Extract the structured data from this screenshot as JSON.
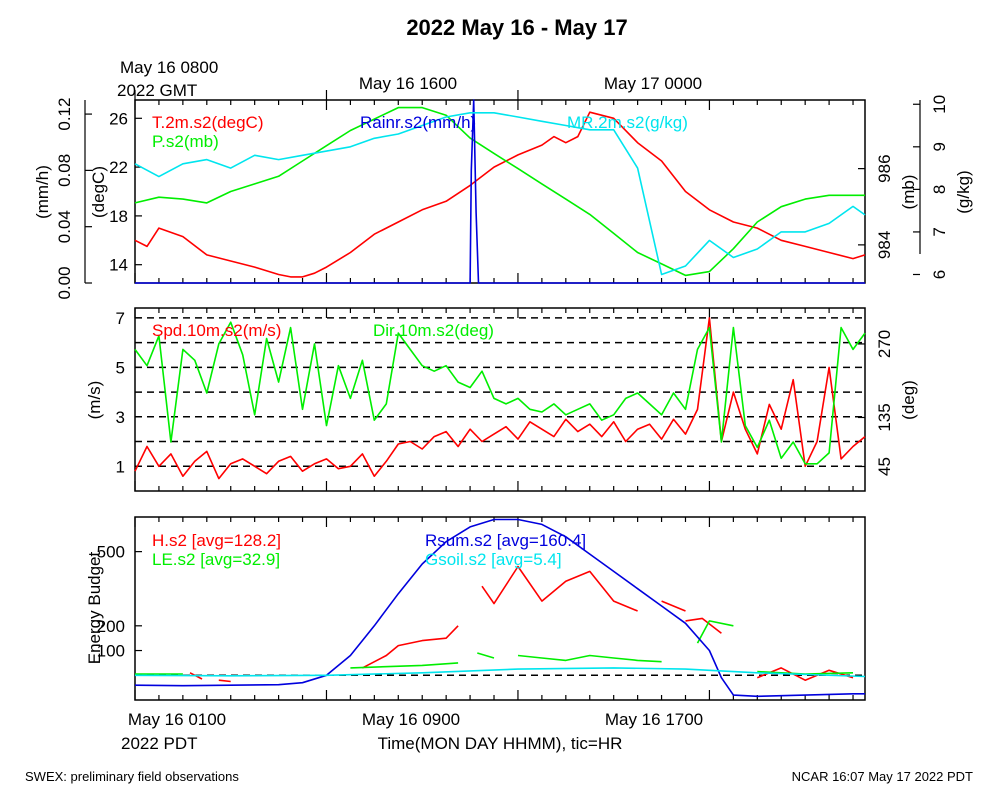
{
  "header": {
    "title": "2022 May 16 - May 17",
    "start_gmt_line1": "May 16 0800",
    "start_gmt_line2": "2022 GMT",
    "gmt_ticks": [
      "May 16 1600",
      "May 17 0000"
    ]
  },
  "footer": {
    "left": "SWEX: preliminary field observations",
    "right": "NCAR 16:07 May 17 2022 PDT",
    "start_pdt_line1": "May 16 0100",
    "start_pdt_line2": "2022 PDT",
    "pdt_ticks": [
      "May 16 0900",
      "May 16 1700"
    ],
    "xlabel": "Time(MON DAY HHMM), tic=HR"
  },
  "colors": {
    "red": "#ff0000",
    "green": "#00ee00",
    "blue": "#0000dd",
    "cyan": "#00e5ee"
  },
  "chart_data": [
    {
      "type": "line",
      "panel": "top",
      "x_range_hours_pdt": [
        0,
        30.5
      ],
      "legend": [
        "T.2m.s2(degC)",
        "P.s2(mb)",
        "Rainr.s2(mm/h)",
        "MR.2m.s2(g/kg)"
      ],
      "axes": {
        "rain": {
          "label": "(mm/h)",
          "ticks": [
            "0.00",
            "0.04",
            "0.08",
            "0.12"
          ],
          "range": [
            0,
            0.13
          ]
        },
        "temp": {
          "label": "(degC)",
          "ticks": [
            "14",
            "18",
            "22",
            "26"
          ],
          "range": [
            12.5,
            27.5
          ]
        },
        "pressure": {
          "label": "(mb)",
          "ticks": [
            "984",
            "986"
          ],
          "range": [
            983.0,
            987.8
          ]
        },
        "mixing_ratio": {
          "label": "(g/kg)",
          "ticks": [
            "6",
            "7",
            "8",
            "9",
            "10"
          ],
          "range": [
            5.8,
            10.1
          ]
        }
      },
      "series": [
        {
          "name": "T.2m.s2(degC)",
          "color": "red",
          "axis": "temp",
          "x": [
            0,
            0.5,
            1,
            2,
            3,
            4,
            5,
            6,
            6.5,
            7,
            7.5,
            8,
            9,
            10,
            11,
            12,
            13,
            14,
            15,
            16,
            17,
            17.5,
            18,
            18.5,
            19,
            20,
            21,
            22,
            23,
            24,
            25,
            26,
            27,
            28,
            29,
            30,
            30.5
          ],
          "y": [
            16,
            15.5,
            17,
            16.3,
            14.8,
            14.3,
            13.8,
            13.2,
            13.0,
            13.0,
            13.3,
            13.8,
            15.0,
            16.5,
            17.5,
            18.5,
            19.2,
            20.5,
            22.0,
            23.0,
            23.8,
            24.5,
            24.0,
            24.5,
            26.5,
            26.0,
            24.0,
            22.5,
            20.0,
            18.5,
            17.5,
            17.0,
            16.0,
            15.5,
            15.0,
            14.5,
            14.8
          ]
        },
        {
          "name": "P.s2(mb)",
          "color": "green",
          "axis": "pressure",
          "x": [
            0,
            1,
            2,
            3,
            4,
            5,
            6,
            7,
            8,
            9,
            10,
            11,
            12,
            13,
            14,
            15,
            16,
            17,
            18,
            19,
            20,
            21,
            22,
            23,
            24,
            25,
            26,
            27,
            28,
            29,
            30,
            30.5
          ],
          "y": [
            985.1,
            985.25,
            985.2,
            985.1,
            985.4,
            985.6,
            985.8,
            986.2,
            986.6,
            987.0,
            987.3,
            987.6,
            987.6,
            987.4,
            986.8,
            986.4,
            986.0,
            985.6,
            985.2,
            984.8,
            984.3,
            983.8,
            983.5,
            983.2,
            983.3,
            983.9,
            984.6,
            985.0,
            985.2,
            985.3,
            985.3,
            985.3
          ]
        },
        {
          "name": "Rainr.s2(mm/h)",
          "color": "blue",
          "axis": "rain",
          "x": [
            0,
            14.0,
            14.05,
            14.15,
            14.25,
            14.35,
            30.5
          ],
          "y": [
            0,
            0,
            0.08,
            0.13,
            0.05,
            0,
            0
          ]
        },
        {
          "name": "MR.2m.s2(g/kg)",
          "color": "cyan",
          "axis": "mixing_ratio",
          "x": [
            0,
            1,
            2,
            3,
            4,
            5,
            6,
            7,
            8,
            9,
            10,
            11,
            12,
            13,
            14,
            15,
            16,
            17,
            18,
            19,
            20,
            21,
            22,
            23,
            24,
            25,
            26,
            27,
            28,
            29,
            30,
            30.5
          ],
          "y": [
            8.6,
            8.3,
            8.6,
            8.7,
            8.5,
            8.8,
            8.7,
            8.8,
            8.9,
            9.0,
            9.2,
            9.3,
            9.5,
            9.7,
            9.8,
            9.8,
            9.7,
            9.6,
            9.5,
            9.4,
            9.4,
            8.5,
            6.0,
            6.2,
            6.8,
            6.4,
            6.6,
            7.0,
            7.0,
            7.2,
            7.6,
            7.4
          ]
        }
      ]
    },
    {
      "type": "line",
      "panel": "middle",
      "x_range_hours_pdt": [
        0,
        30.5
      ],
      "legend": [
        "Spd.10m.s2(m/s)",
        "Dir.10m.s2(deg)"
      ],
      "axes": {
        "speed": {
          "label": "(m/s)",
          "ticks": [
            "1",
            "3",
            "5",
            "7"
          ],
          "range": [
            0,
            7.4
          ]
        },
        "direction": {
          "label": "(deg)",
          "ticks": [
            "45",
            "135",
            "270"
          ],
          "range": [
            0,
            336
          ]
        }
      },
      "reference_lines_ms": [
        1,
        2,
        3,
        4,
        5,
        6,
        7
      ],
      "series": [
        {
          "name": "Spd.10m.s2(m/s)",
          "color": "red",
          "axis": "speed",
          "x": [
            0,
            0.5,
            1,
            1.5,
            2,
            2.5,
            3,
            3.5,
            4,
            4.5,
            5,
            5.5,
            6,
            6.5,
            7,
            7.5,
            8,
            8.5,
            9,
            9.5,
            10,
            10.5,
            11,
            11.5,
            12,
            12.5,
            13,
            13.5,
            14,
            14.5,
            15,
            15.5,
            16,
            16.5,
            17,
            17.5,
            18,
            18.5,
            19,
            19.5,
            20,
            20.5,
            21,
            21.5,
            22,
            22.5,
            23,
            23.5,
            24,
            24.5,
            25,
            25.5,
            26,
            26.5,
            27,
            27.5,
            28,
            28.5,
            29,
            29.5,
            30,
            30.5
          ],
          "y": [
            0.8,
            1.8,
            1.0,
            1.5,
            0.6,
            1.2,
            1.6,
            0.5,
            1.1,
            1.3,
            1.0,
            0.7,
            1.2,
            1.4,
            0.8,
            1.1,
            1.3,
            0.9,
            1.0,
            1.5,
            0.6,
            1.2,
            1.9,
            2.0,
            1.7,
            2.2,
            2.4,
            1.8,
            2.5,
            2.0,
            2.3,
            2.6,
            2.1,
            2.8,
            2.5,
            2.2,
            2.9,
            2.4,
            2.7,
            2.2,
            2.8,
            2.0,
            2.5,
            2.7,
            2.1,
            2.9,
            2.3,
            3.3,
            7.0,
            2.0,
            4.0,
            2.5,
            1.5,
            3.5,
            2.5,
            4.5,
            1.0,
            2.0,
            5.0,
            1.3,
            1.8,
            2.2
          ]
        },
        {
          "name": "Dir.10m.s2(deg)",
          "color": "green",
          "axis": "direction",
          "x": [
            0,
            0.5,
            1,
            1.5,
            2,
            2.5,
            3,
            3.5,
            4,
            4.5,
            5,
            5.5,
            6,
            6.5,
            7,
            7.5,
            8,
            8.5,
            9,
            9.5,
            10,
            10.5,
            11,
            11.5,
            12,
            12.5,
            13,
            13.5,
            14,
            14.5,
            15,
            15.5,
            16,
            16.5,
            17,
            17.5,
            18,
            18.5,
            19,
            19.5,
            20,
            20.5,
            21,
            21.5,
            22,
            22.5,
            23,
            23.5,
            24,
            24.5,
            25,
            25.5,
            26,
            26.5,
            27,
            27.5,
            28,
            28.5,
            29,
            29.5,
            30,
            30.5
          ],
          "y": [
            260,
            230,
            285,
            90,
            260,
            240,
            180,
            270,
            310,
            250,
            140,
            280,
            200,
            300,
            150,
            270,
            120,
            230,
            170,
            240,
            130,
            160,
            290,
            260,
            230,
            220,
            230,
            200,
            190,
            220,
            170,
            160,
            170,
            150,
            145,
            160,
            140,
            150,
            160,
            130,
            140,
            170,
            180,
            160,
            140,
            180,
            150,
            260,
            300,
            90,
            300,
            120,
            80,
            130,
            60,
            90,
            50,
            50,
            70,
            300,
            260,
            290
          ]
        }
      ]
    },
    {
      "type": "line",
      "panel": "bottom",
      "x_range_hours_pdt": [
        0,
        30.5
      ],
      "legend": [
        "H.s2 [avg=128.2]",
        "LE.s2 [avg=32.9]",
        "Rsum.s2 [avg=160.4]",
        "Gsoil.s2 [avg=5.4]"
      ],
      "axes": {
        "energy": {
          "label": "Energy Budget",
          "ticks": [
            "100",
            "200",
            "500"
          ],
          "range": [
            -100,
            640
          ]
        }
      },
      "reference_line": 0,
      "series": [
        {
          "name": "H.s2 [avg=128.2]",
          "color": "red",
          "axis": "energy",
          "segments": [
            {
              "x": [
                2.3,
                2.8
              ],
              "y": [
                10,
                -15
              ]
            },
            {
              "x": [
                3.5,
                4.0
              ],
              "y": [
                -20,
                -25
              ]
            },
            {
              "x": [
                9.5,
                10.5,
                11.0,
                12.0,
                13.0,
                13.5
              ],
              "y": [
                30,
                80,
                120,
                140,
                150,
                200
              ]
            },
            {
              "x": [
                14.5,
                15.0,
                16.0,
                17.0,
                18.0,
                19.0,
                20.0,
                21.0
              ],
              "y": [
                360,
                290,
                440,
                300,
                380,
                420,
                300,
                260
              ]
            },
            {
              "x": [
                22.0,
                23.0
              ],
              "y": [
                300,
                260
              ]
            },
            {
              "x": [
                23.0,
                23.7,
                24.5
              ],
              "y": [
                220,
                230,
                170
              ]
            },
            {
              "x": [
                26.0,
                27.0,
                28.0,
                29.0,
                30.0
              ],
              "y": [
                -10,
                30,
                -20,
                20,
                -10
              ]
            }
          ]
        },
        {
          "name": "LE.s2 [avg=32.9]",
          "color": "green",
          "axis": "energy",
          "segments": [
            {
              "x": [
                0,
                2.0
              ],
              "y": [
                5,
                5
              ]
            },
            {
              "x": [
                9.0,
                12.0,
                13.5
              ],
              "y": [
                30,
                40,
                50
              ]
            },
            {
              "x": [
                14.3,
                15.0
              ],
              "y": [
                90,
                70
              ]
            },
            {
              "x": [
                16.0,
                17.0,
                18.0,
                19.0,
                20.0,
                21.0,
                22.0
              ],
              "y": [
                80,
                70,
                60,
                80,
                70,
                60,
                55
              ]
            },
            {
              "x": [
                23.5,
                24.0,
                25.0
              ],
              "y": [
                130,
                220,
                200
              ]
            },
            {
              "x": [
                26.0,
                27.0,
                28.0,
                30.0
              ],
              "y": [
                15,
                10,
                5,
                10
              ]
            }
          ]
        },
        {
          "name": "Rsum.s2 [avg=160.4]",
          "color": "blue",
          "axis": "energy",
          "x": [
            0,
            2,
            4,
            6,
            7,
            8,
            9,
            10,
            11,
            12,
            13,
            14,
            15,
            16,
            17,
            18,
            19,
            20,
            21,
            22,
            23,
            24,
            24.5,
            25,
            26,
            28,
            30,
            30.5
          ],
          "y": [
            -40,
            -42,
            -40,
            -38,
            -30,
            0,
            80,
            200,
            330,
            450,
            540,
            600,
            630,
            630,
            610,
            560,
            490,
            420,
            350,
            280,
            210,
            100,
            -10,
            -80,
            -85,
            -80,
            -75,
            -75
          ]
        },
        {
          "name": "Gsoil.s2 [avg=5.4]",
          "color": "cyan",
          "axis": "energy",
          "x": [
            0,
            4,
            8,
            12,
            16,
            20,
            23,
            26,
            30.5
          ],
          "y": [
            0,
            -2,
            0,
            10,
            25,
            30,
            25,
            10,
            -5
          ]
        }
      ]
    }
  ]
}
